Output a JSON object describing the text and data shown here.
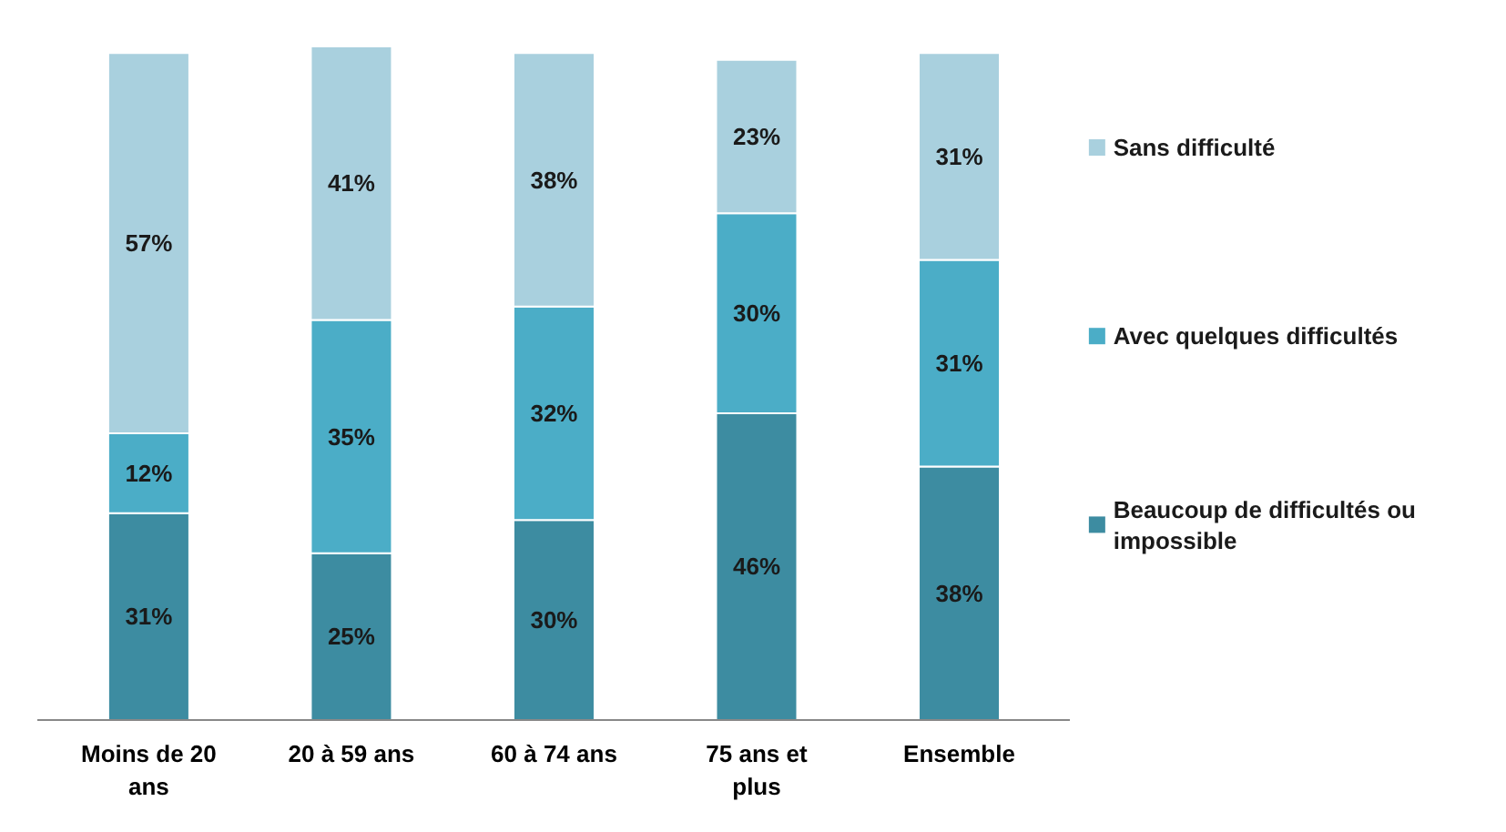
{
  "chart_data": {
    "type": "bar",
    "stacked": true,
    "categories": [
      "Moins de 20 ans",
      "20 à 59 ans",
      "60 à 74 ans",
      "75 ans et plus",
      "Ensemble"
    ],
    "series": [
      {
        "name": "Beaucoup de difficultés ou impossible",
        "color": "#3d8ca1",
        "values": [
          31,
          25,
          30,
          46,
          38
        ],
        "value_labels": [
          "31%",
          "25%",
          "30%",
          "46%",
          "38%"
        ]
      },
      {
        "name": "Avec quelques difficultés",
        "color": "#4badc7",
        "values": [
          12,
          35,
          32,
          30,
          31
        ],
        "value_labels": [
          "12%",
          "35%",
          "32%",
          "30%",
          "31%"
        ]
      },
      {
        "name": "Sans difficulté",
        "color": "#a9d0de",
        "values": [
          57,
          41,
          38,
          23,
          31
        ],
        "value_labels": [
          "57%",
          "41%",
          "38%",
          "23%",
          "31%"
        ]
      }
    ],
    "legend": "right",
    "grid": false
  }
}
